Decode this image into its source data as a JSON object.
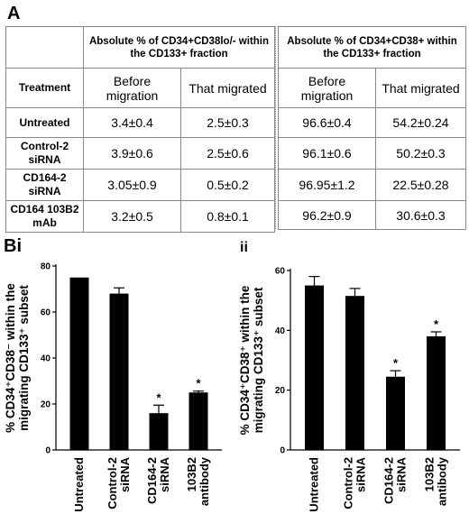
{
  "panel_a": {
    "label": "A",
    "left_group_header": "Absolute % of CD34+CD38lo/- within the CD133+ fraction",
    "right_group_header": "Absolute % of CD34+CD38+ within the CD133+ fraction",
    "treatment_header": "Treatment",
    "before_header": "Before migration",
    "migrated_header": "That migrated",
    "rows": [
      {
        "treatment": "Untreated",
        "left_before": "3.4±0.4",
        "left_migrated": "2.5±0.3",
        "right_before": "96.6±0.4",
        "right_migrated": "54.2±0.24"
      },
      {
        "treatment": "Control-2 siRNA",
        "left_before": "3.9±0.6",
        "left_migrated": "2.5±0.6",
        "right_before": "96.1±0.6",
        "right_migrated": "50.2±0.3"
      },
      {
        "treatment": "CD164-2 siRNA",
        "left_before": "3.05±0.9",
        "left_migrated": "0.5±0.2",
        "right_before": "96.95±1.2",
        "right_migrated": "22.5±0.28"
      },
      {
        "treatment": "CD164 103B2 mAb",
        "left_before": "3.2±0.5",
        "left_migrated": "0.8±0.1",
        "right_before": "96.2±0.9",
        "right_migrated": "30.6±0.3"
      }
    ]
  },
  "chart_data": [
    {
      "type": "bar",
      "panel_label": "Bi",
      "ylabel_lines": [
        "% CD34⁺CD38⁻ within the",
        "migrating CD133⁺ subset"
      ],
      "categories": [
        [
          "Untreated"
        ],
        [
          "Control-2",
          "siRNA"
        ],
        [
          "CD164-2",
          "siRNA"
        ],
        [
          "103B2",
          "antibody"
        ]
      ],
      "values": [
        75,
        68,
        16,
        25
      ],
      "errors": [
        0,
        2.5,
        3.5,
        0.6
      ],
      "significant": [
        false,
        false,
        true,
        true
      ],
      "significance_marker": "*",
      "ylim": [
        0,
        80
      ],
      "yticks": [
        0,
        20,
        40,
        60,
        80
      ],
      "grid": false
    },
    {
      "type": "bar",
      "panel_label": "ii",
      "ylabel_lines": [
        "% CD34⁺CD38⁺ within the",
        "migrating CD133⁺ subset"
      ],
      "categories": [
        [
          "Untreated"
        ],
        [
          "Control-2",
          "siRNA"
        ],
        [
          "CD164-2",
          "siRNA"
        ],
        [
          "103B2",
          "antibody"
        ]
      ],
      "values": [
        55,
        51.5,
        24.5,
        38
      ],
      "errors": [
        3,
        2.5,
        2,
        1.5
      ],
      "significant": [
        false,
        false,
        true,
        true
      ],
      "significance_marker": "*",
      "ylim": [
        0,
        60
      ],
      "yticks": [
        0,
        20,
        40,
        60
      ],
      "grid": false
    }
  ]
}
